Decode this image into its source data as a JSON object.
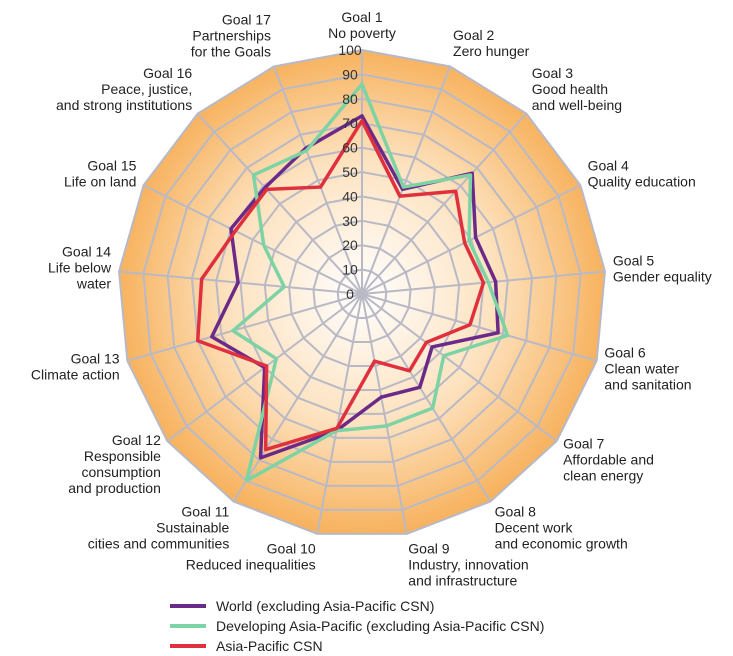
{
  "chart_data": {
    "type": "radar",
    "categories": [
      [
        "Goal 1",
        "No poverty"
      ],
      [
        "Goal 2",
        "Zero hunger"
      ],
      [
        "Goal 3",
        "Good health",
        "and well-being"
      ],
      [
        "Goal 4",
        "Quality education"
      ],
      [
        "Goal 5",
        "Gender equality"
      ],
      [
        "Goal 6",
        "Clean water",
        "and sanitation"
      ],
      [
        "Goal 7",
        "Affordable and",
        "clean energy"
      ],
      [
        "Goal 8",
        "Decent work",
        "and economic growth"
      ],
      [
        "Goal 9",
        "Industry, innovation",
        "and infrastructure"
      ],
      [
        "Goal 10",
        "Reduced inequalities"
      ],
      [
        "Goal 11",
        "Sustainable",
        "cities and communities"
      ],
      [
        "Goal 12",
        "Responsible",
        "consumption",
        "and production"
      ],
      [
        "Goal 13",
        "Climate action"
      ],
      [
        "Goal 14",
        "Life below",
        "water"
      ],
      [
        "Goal 15",
        "Life on land"
      ],
      [
        "Goal 16",
        "Peace, justice,",
        "and strong institutions"
      ],
      [
        "Goal 17",
        "Partnerships",
        "for the Goals"
      ]
    ],
    "series": [
      {
        "name": "World (excluding Asia-Pacific CSN)",
        "color": "#6b2a88",
        "values": [
          73,
          46,
          67,
          52,
          55,
          58,
          36,
          45,
          43,
          57,
          79,
          50,
          64,
          51,
          60,
          59,
          64
        ]
      },
      {
        "name": "Developing Asia-Pacific (excluding Asia-Pacific CSN)",
        "color": "#7ed3a4",
        "values": [
          86,
          47,
          66,
          49,
          52,
          62,
          42,
          55,
          55,
          57,
          90,
          44,
          55,
          32,
          45,
          66,
          63
        ]
      },
      {
        "name": "Asia-Pacific CSN",
        "color": "#e0303e",
        "values": [
          71,
          43,
          57,
          47,
          50,
          46,
          33,
          37,
          28,
          56,
          75,
          49,
          70,
          66,
          58,
          58,
          47
        ]
      }
    ],
    "rlim": [
      0,
      100
    ],
    "rticks": [
      0,
      10,
      20,
      30,
      40,
      50,
      60,
      70,
      80,
      90,
      100
    ],
    "grid": true
  }
}
